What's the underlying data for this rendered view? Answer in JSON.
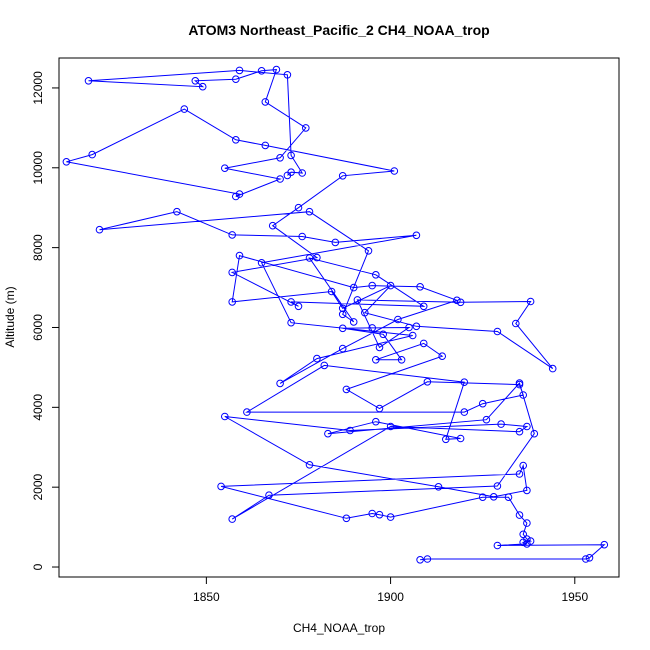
{
  "chart_data": {
    "type": "line",
    "title": "ATOM3 Northeast_Pacific_2 CH4_NOAA_trop",
    "xlabel": "CH4_NOAA_trop",
    "ylabel": "Altitude (m)",
    "xlim": [
      1810,
      1962
    ],
    "ylim": [
      -250,
      12750
    ],
    "x_ticks": [
      1850,
      1900,
      1950
    ],
    "y_ticks": [
      0,
      2000,
      4000,
      6000,
      8000,
      10000,
      12000
    ],
    "colors": {
      "series": "#0000ff"
    },
    "markers": "open-circle",
    "series": [
      {
        "x": [
          1908,
          1910,
          1953,
          1954,
          1958,
          1929,
          1937,
          1936,
          1938,
          1937,
          1936,
          1937,
          1935,
          1932,
          1925,
          1900,
          1897,
          1895,
          1888,
          1854,
          1935,
          1936,
          1937,
          1928,
          1913,
          1878,
          1855,
          1889,
          1930,
          1937,
          1935,
          1900,
          1857,
          1867,
          1929,
          1939,
          1935,
          1926,
          1883,
          1896,
          1919,
          1915,
          1920,
          1882,
          1861,
          1920,
          1925,
          1936,
          1935,
          1910,
          1897,
          1888,
          1914,
          1909,
          1896,
          1903,
          1898,
          1887,
          1895,
          1905,
          1897,
          1891,
          1919,
          1938,
          1934,
          1944,
          1929,
          1907,
          1893,
          1900,
          1887,
          1884,
          1857,
          1859,
          1890,
          1895,
          1908,
          1918,
          1902,
          1887,
          1870,
          1880,
          1906,
          1873,
          1865,
          1907,
          1885,
          1876,
          1857,
          1842,
          1821,
          1878,
          1894,
          1887,
          1890,
          1878,
          1896,
          1909,
          1873,
          1875,
          1857,
          1880,
          1868,
          1875,
          1887,
          1901,
          1866,
          1858,
          1844,
          1819,
          1812,
          1859,
          1858,
          1870,
          1855,
          1870,
          1877,
          1866,
          1869,
          1865,
          1858,
          1847,
          1849,
          1818,
          1859,
          1872,
          1873,
          1876,
          1873,
          1872
        ],
        "y": [
          180,
          200,
          200,
          230,
          560,
          540,
          580,
          620,
          650,
          700,
          820,
          1100,
          1300,
          1750,
          1750,
          1250,
          1310,
          1340,
          1220,
          2020,
          2330,
          2540,
          1920,
          1760,
          2010,
          2560,
          3770,
          3420,
          3580,
          3520,
          3390,
          3520,
          1200,
          1800,
          2030,
          3340,
          4610,
          3690,
          3340,
          3640,
          3220,
          3200,
          4630,
          5050,
          3880,
          3880,
          4090,
          4310,
          4570,
          4640,
          3970,
          4450,
          5280,
          5600,
          5190,
          5190,
          5830,
          5980,
          5990,
          6000,
          5500,
          6690,
          6630,
          6650,
          6100,
          4970,
          5900,
          6030,
          6370,
          7050,
          6480,
          6900,
          6640,
          7800,
          7000,
          7050,
          7020,
          6680,
          6200,
          5470,
          4600,
          5220,
          5800,
          6120,
          7620,
          8310,
          8130,
          8280,
          8320,
          8900,
          8450,
          8900,
          7920,
          6330,
          6140,
          7740,
          7320,
          6530,
          6640,
          6530,
          7380,
          7750,
          8550,
          9000,
          9800,
          9920,
          10560,
          10700,
          11470,
          10330,
          10150,
          9340,
          9280,
          9720,
          9990,
          10250,
          11000,
          11650,
          12460,
          12430,
          12220,
          12180,
          12030,
          12180,
          12440,
          12330,
          10310,
          9870,
          9890,
          9810
        ]
      }
    ]
  }
}
